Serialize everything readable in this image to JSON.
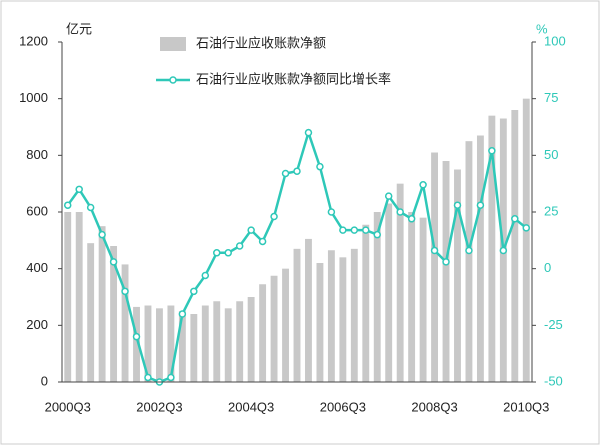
{
  "chart_data": {
    "type": "bar_line",
    "y_unit": "亿元",
    "y2_unit": "%",
    "categories": [
      "2000Q3",
      null,
      null,
      null,
      null,
      null,
      null,
      null,
      "2002Q3",
      null,
      null,
      null,
      null,
      null,
      null,
      null,
      "2004Q3",
      null,
      null,
      null,
      null,
      null,
      null,
      null,
      "2006Q3",
      null,
      null,
      null,
      null,
      null,
      null,
      null,
      "2008Q3",
      null,
      null,
      null,
      null,
      null,
      null,
      null,
      "2010Q3"
    ],
    "series": [
      {
        "name": "石油行业应收账款净额",
        "type": "bar",
        "color": "#c8c8c8",
        "values": [
          600,
          600,
          490,
          550,
          480,
          415,
          265,
          270,
          260,
          270,
          250,
          240,
          270,
          285,
          260,
          285,
          300,
          345,
          375,
          400,
          470,
          505,
          420,
          465,
          440,
          470,
          555,
          600,
          630,
          700,
          600,
          580,
          810,
          780,
          750,
          850,
          870,
          940,
          930,
          960,
          1000
        ]
      },
      {
        "name": "石油行业应收账款净额同比增长率",
        "type": "line",
        "axis": "y2",
        "color": "#2ec8b8",
        "values": [
          28,
          35,
          27,
          15,
          3,
          -10,
          -30,
          -48,
          -50,
          -48,
          -20,
          -10,
          -3,
          7,
          7,
          10,
          17,
          12,
          23,
          42,
          43,
          60,
          45,
          25,
          17,
          17,
          17,
          15,
          32,
          25,
          22,
          37,
          8,
          3,
          28,
          8,
          28,
          52,
          8,
          22,
          18
        ]
      }
    ],
    "ylim": [
      0,
      1200
    ],
    "yticks": [
      0,
      200,
      400,
      600,
      800,
      1000,
      1200
    ],
    "y2lim": [
      -50,
      100
    ],
    "y2ticks": [
      -50,
      -25,
      0,
      25,
      50,
      75,
      100
    ]
  }
}
